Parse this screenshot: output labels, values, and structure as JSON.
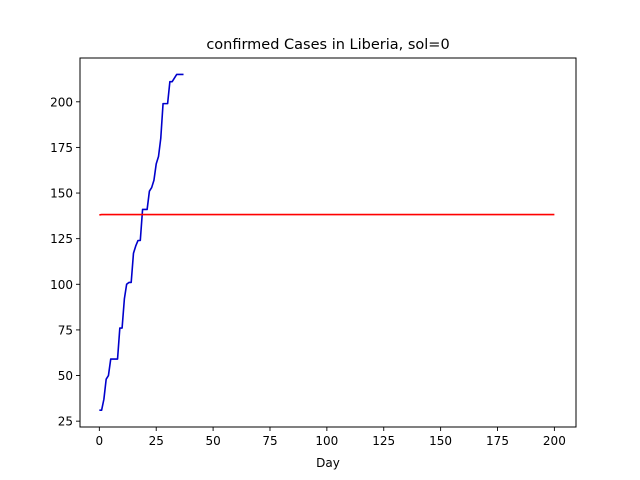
{
  "chart_data": {
    "type": "line",
    "title": "confirmed Cases in Liberia, sol=0",
    "xlabel": "Day",
    "ylabel": "",
    "xlim": [
      -8.5,
      209.5
    ],
    "ylim": [
      21.8,
      224.0
    ],
    "xticks": [
      0,
      25,
      50,
      75,
      100,
      125,
      150,
      175,
      200
    ],
    "yticks": [
      25,
      50,
      75,
      100,
      125,
      150,
      175,
      200
    ],
    "grid": false,
    "series": [
      {
        "color": "#0000cc",
        "x": [
          0,
          1,
          2,
          3,
          4,
          5,
          6,
          7,
          8,
          9,
          10,
          11,
          12,
          13,
          14,
          15,
          16,
          17,
          18,
          19,
          20,
          21,
          22,
          23,
          24,
          25,
          26,
          27,
          28,
          29,
          30,
          31,
          32,
          33,
          34,
          35,
          36,
          37
        ],
        "values": [
          31,
          31,
          37,
          48,
          50,
          59,
          59,
          59,
          59,
          76,
          76,
          92,
          100,
          101,
          101,
          117,
          121,
          124,
          124,
          141,
          141,
          141,
          151,
          153,
          157,
          166,
          170,
          180,
          199,
          199,
          199,
          211,
          211,
          213,
          215,
          215,
          215,
          215
        ]
      },
      {
        "color": "#ff0000",
        "x": [
          0,
          1,
          200
        ],
        "values": [
          138.0,
          138.2,
          138.2
        ]
      }
    ]
  }
}
